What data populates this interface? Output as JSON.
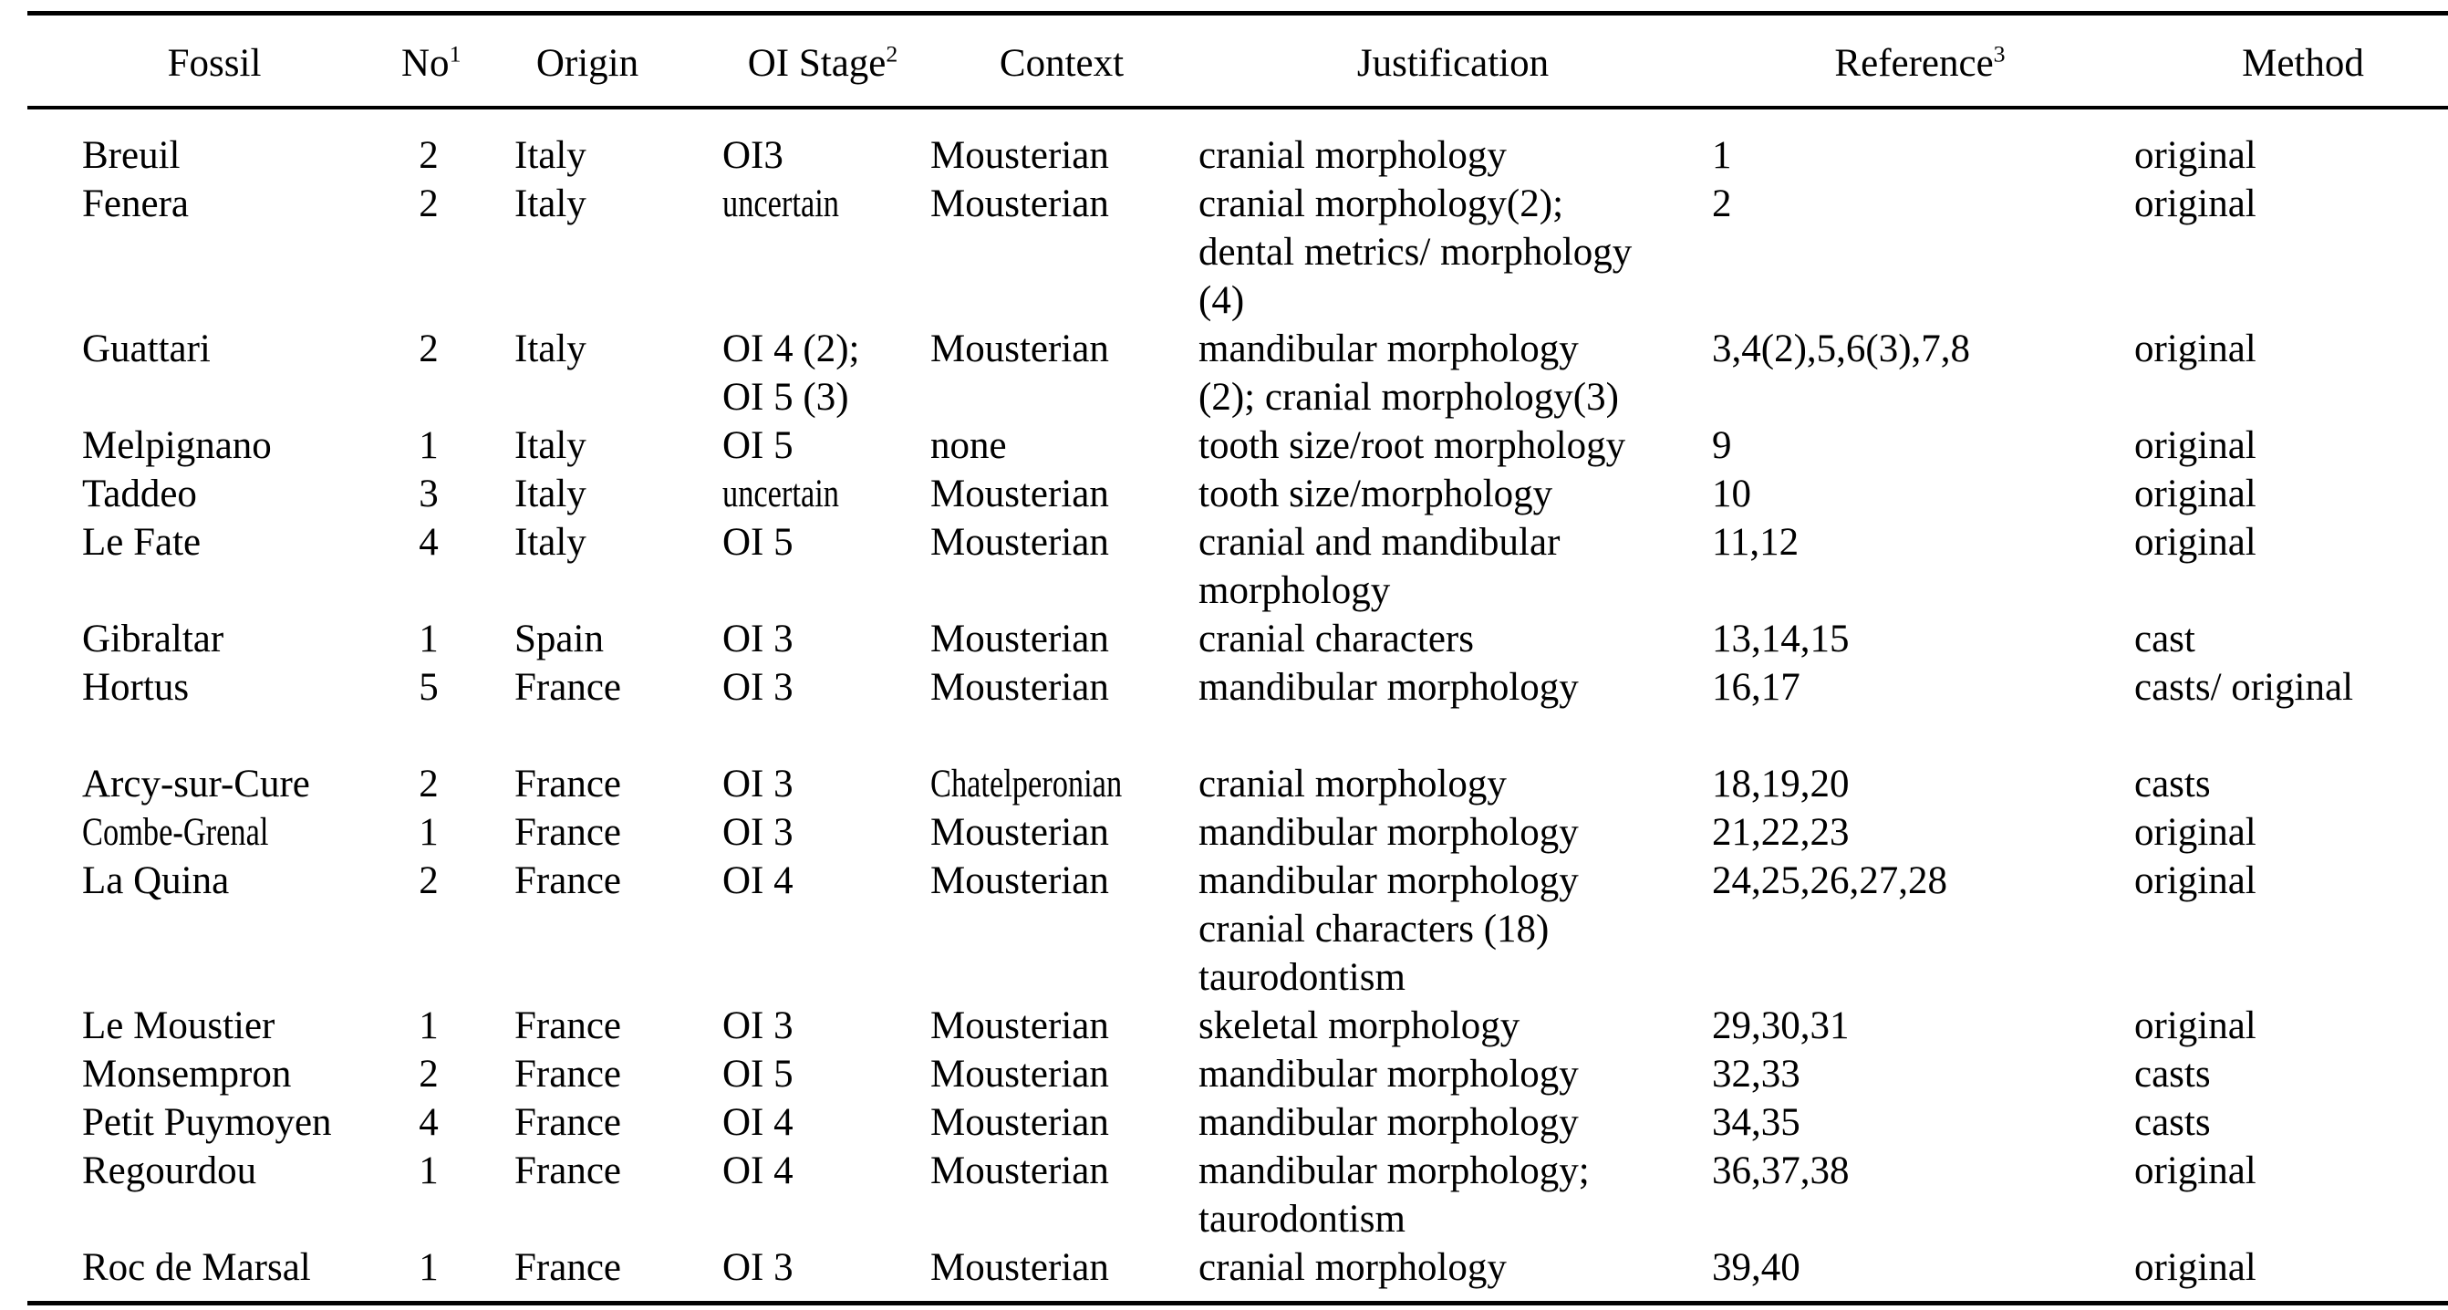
{
  "table": {
    "columns": [
      {
        "id": "fossil",
        "label": "Fossil",
        "sup": ""
      },
      {
        "id": "no",
        "label": "No",
        "sup": "1"
      },
      {
        "id": "origin",
        "label": "Origin",
        "sup": ""
      },
      {
        "id": "oi_stage",
        "label": "OI Stage",
        "sup": "2"
      },
      {
        "id": "context",
        "label": "Context",
        "sup": ""
      },
      {
        "id": "justification",
        "label": "Justification",
        "sup": ""
      },
      {
        "id": "reference",
        "label": "Reference",
        "sup": "3"
      },
      {
        "id": "method",
        "label": "Method",
        "sup": ""
      }
    ],
    "rows": [
      {
        "fossil": "Breuil",
        "no": "2",
        "origin": "Italy",
        "oi_stage": "OI3",
        "context": "Mousterian",
        "justification": "cranial morphology",
        "reference": "1",
        "method": "original"
      },
      {
        "fossil": "Fenera",
        "no": "2",
        "origin": "Italy",
        "oi_stage": "uncertain",
        "context": "Mousterian",
        "justification": "cranial morphology(2);\ndental metrics/ morphology\n(4)",
        "reference": "2",
        "method": "original",
        "condensed": [
          "oi_stage"
        ]
      },
      {
        "fossil": "Guattari",
        "no": "2",
        "origin": "Italy",
        "oi_stage": "OI 4 (2);\nOI 5 (3)",
        "context": "Mousterian",
        "justification": "mandibular morphology\n(2); cranial morphology(3)",
        "reference": "3,4(2),5,6(3),7,8",
        "method": "original"
      },
      {
        "fossil": "Melpignano",
        "no": "1",
        "origin": "Italy",
        "oi_stage": "OI 5",
        "context": "none",
        "justification": "tooth size/root morphology",
        "reference": "9",
        "method": "original"
      },
      {
        "fossil": "Taddeo",
        "no": "3",
        "origin": "Italy",
        "oi_stage": "uncertain",
        "context": "Mousterian",
        "justification": "tooth size/morphology",
        "reference": "10",
        "method": "original",
        "condensed": [
          "oi_stage"
        ]
      },
      {
        "fossil": "Le Fate",
        "no": "4",
        "origin": "Italy",
        "oi_stage": "OI 5",
        "context": "Mousterian",
        "justification": "cranial and mandibular\nmorphology",
        "reference": "11,12",
        "method": "original"
      },
      {
        "fossil": "Gibraltar",
        "no": "1",
        "origin": "Spain",
        "oi_stage": "OI 3",
        "context": "Mousterian",
        "justification": "cranial characters",
        "reference": "13,14,15",
        "method": "cast"
      },
      {
        "fossil": "Hortus",
        "no": "5",
        "origin": "France",
        "oi_stage": "OI 3",
        "context": "Mousterian",
        "justification": "mandibular morphology",
        "reference": "16,17",
        "method": "casts/ original"
      },
      {
        "fossil": "Arcy-sur-Cure",
        "no": "2",
        "origin": "France",
        "oi_stage": "OI 3",
        "context": "Chatelperonian",
        "justification": "cranial morphology",
        "reference": "18,19,20",
        "method": "casts",
        "gap_before": true,
        "condensed": [
          "context"
        ]
      },
      {
        "fossil": "Combe-Grenal",
        "no": "1",
        "origin": "France",
        "oi_stage": "OI 3",
        "context": "Mousterian",
        "justification": "mandibular morphology",
        "reference": "21,22,23",
        "method": "original",
        "condensed": [
          "fossil"
        ]
      },
      {
        "fossil": "La Quina",
        "no": "2",
        "origin": "France",
        "oi_stage": "OI 4",
        "context": "Mousterian",
        "justification": "mandibular morphology\ncranial characters (18)\ntaurodontism",
        "reference": "24,25,26,27,28",
        "method": "original"
      },
      {
        "fossil": "Le Moustier",
        "no": "1",
        "origin": "France",
        "oi_stage": "OI 3",
        "context": "Mousterian",
        "justification": "skeletal morphology",
        "reference": "29,30,31",
        "method": "original"
      },
      {
        "fossil": "Monsempron",
        "no": "2",
        "origin": "France",
        "oi_stage": "OI 5",
        "context": "Mousterian",
        "justification": "mandibular morphology",
        "reference": "32,33",
        "method": "casts"
      },
      {
        "fossil": "Petit Puymoyen",
        "no": "4",
        "origin": "France",
        "oi_stage": "OI 4",
        "context": "Mousterian",
        "justification": "mandibular morphology",
        "reference": "34,35",
        "method": "casts"
      },
      {
        "fossil": "Regourdou",
        "no": "1",
        "origin": "France",
        "oi_stage": "OI 4",
        "context": "Mousterian",
        "justification": "mandibular morphology;\ntaurodontism",
        "reference": "36,37,38",
        "method": "original"
      },
      {
        "fossil": "Roc de Marsal",
        "no": "1",
        "origin": "France",
        "oi_stage": "OI 3",
        "context": "Mousterian",
        "justification": "cranial morphology",
        "reference": "39,40",
        "method": "original"
      }
    ]
  },
  "colors": {
    "text": "#000000",
    "background": "#ffffff",
    "rule": "#000000"
  }
}
